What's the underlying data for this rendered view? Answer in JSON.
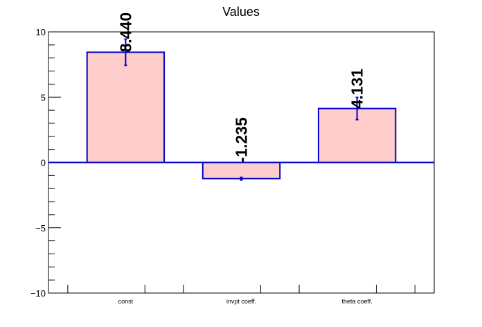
{
  "chart_data": {
    "type": "bar",
    "title": "Values",
    "xlabel": "",
    "ylabel": "",
    "categories": [
      "const",
      "invpt coeff.",
      "theta coeff."
    ],
    "values": [
      8.44,
      -1.235,
      4.131
    ],
    "errors": [
      1.0,
      0.1,
      0.85
    ],
    "value_labels": [
      "8.440",
      "-1.235",
      "4.131"
    ],
    "ylim": [
      -10,
      10
    ],
    "y_ticks": [
      -10,
      -5,
      0,
      5,
      10
    ],
    "y_tick_labels": [
      "−10",
      "−5",
      "0",
      "5",
      "10"
    ],
    "grid": false,
    "colors": {
      "bar_fill": "#ffcccc",
      "bar_stroke": "#0000cc",
      "error_bar": "#0000cc",
      "baseline": "#0000cc",
      "axis": "#000000"
    }
  }
}
